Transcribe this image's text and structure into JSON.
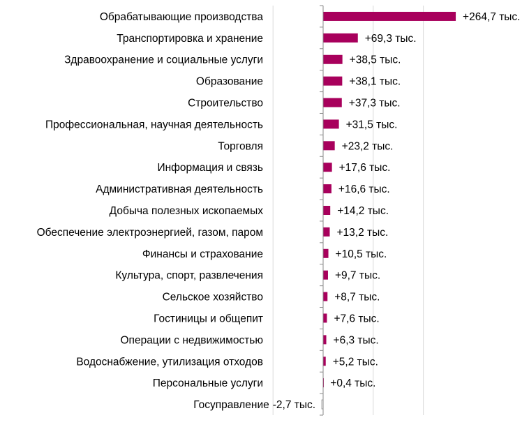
{
  "chart_data": {
    "type": "bar",
    "orientation": "horizontal",
    "title": "",
    "xlabel": "",
    "ylabel": "",
    "xlim": [
      -100,
      300
    ],
    "gridlines_at": [
      -100,
      100,
      200
    ],
    "grid": true,
    "bar_color": "#a8005c",
    "unit_suffix": " тыс.",
    "categories": [
      "Обрабатывающие производства",
      "Транспортировка и хранение",
      "Здравоохранение и социальные услуги",
      "Образование",
      "Строительство",
      "Профессиональная, научная деятельность",
      "Торговля",
      "Информация и связь",
      "Административная деятельность",
      "Добыча полезных ископаемых",
      "Обеспечение электроэнергией, газом, паром",
      "Финансы и страхование",
      "Культура, спорт, развлечения",
      "Сельское хозяйство",
      "Гостиницы и общепит",
      "Операции с недвижимостью",
      "Водоснабжение, утилизация отходов",
      "Персональные услуги",
      "Госуправление"
    ],
    "values": [
      264.7,
      69.3,
      38.5,
      38.1,
      37.3,
      31.5,
      23.2,
      17.6,
      16.6,
      14.2,
      13.2,
      10.5,
      9.7,
      8.7,
      7.6,
      6.3,
      5.2,
      0.4,
      -2.7
    ],
    "data_labels": [
      "+264,7 тыс.",
      "+69,3 тыс.",
      "+38,5 тыс.",
      "+38,1 тыс.",
      "+37,3 тыс.",
      "+31,5 тыс.",
      "+23,2 тыс.",
      "+17,6 тыс.",
      "+16,6 тыс.",
      "+14,2 тыс.",
      "+13,2 тыс.",
      "+10,5 тыс.",
      "+9,7 тыс.",
      "+8,7 тыс.",
      "+7,6 тыс.",
      "+6,3 тыс.",
      "+5,2 тыс.",
      "+0,4 тыс.",
      "-2,7 тыс."
    ]
  }
}
